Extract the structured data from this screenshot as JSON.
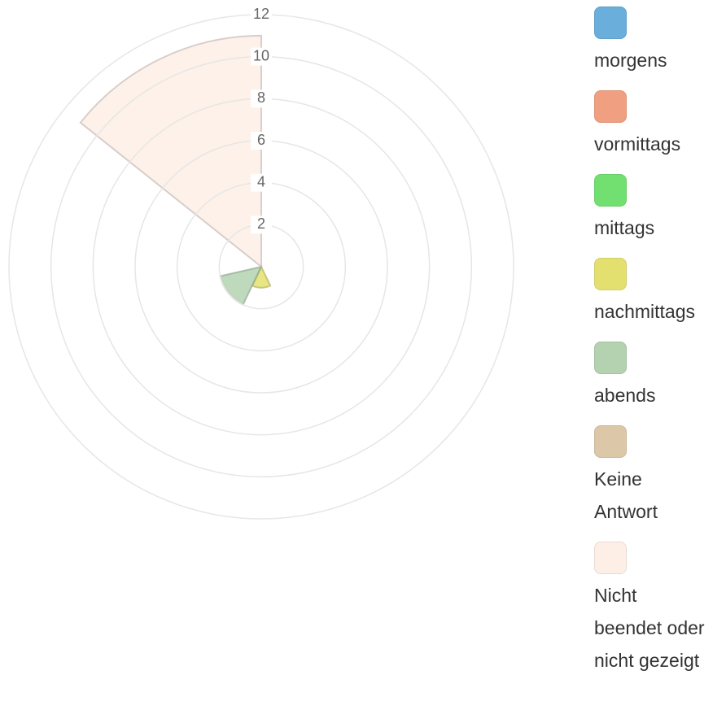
{
  "chart_data": {
    "type": "polarArea",
    "categories": [
      "morgens",
      "vormittags",
      "mittags",
      "nachmittags",
      "abends",
      "Keine Antwort",
      "Nicht beendet oder nicht gezeigt"
    ],
    "values": [
      0,
      0,
      0,
      1,
      2,
      0,
      11
    ],
    "colors": [
      "#6aaedc",
      "#f0a080",
      "#72e070",
      "#e4e070",
      "#b4d2b0",
      "#dcc8a8",
      "#fdeee6"
    ],
    "rlim": [
      0,
      12
    ],
    "rticks": [
      2,
      4,
      6,
      8,
      10,
      12
    ],
    "grid": true,
    "legend": "right"
  }
}
